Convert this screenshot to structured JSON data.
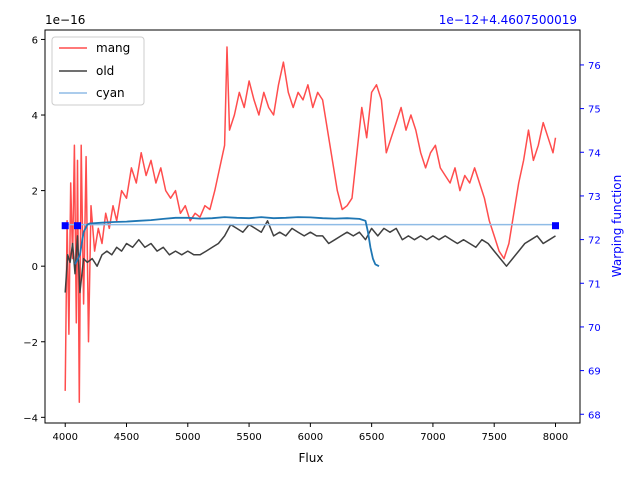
{
  "chart_data": {
    "type": "line",
    "title": "",
    "xlabel": "Flux",
    "ylabel_left": "",
    "ylabel_right": "Warping function",
    "xlim": [
      3835,
      8200
    ],
    "ylim_left": [
      -4.15,
      6.25
    ],
    "ylim_left_unit": "1e-16",
    "ylim_right": [
      67.8,
      76.8
    ],
    "x_ticks": [
      4000,
      4500,
      5000,
      5500,
      6000,
      6500,
      7000,
      7500,
      8000
    ],
    "y_ticks_left": [
      -4,
      -2,
      0,
      2,
      4,
      6
    ],
    "y_ticks_right": [
      68,
      69,
      70,
      71,
      72,
      73,
      74,
      75,
      76
    ],
    "offset_left": "1e−16",
    "offset_right": "1e−12+4.4607500019",
    "grid": false,
    "legend_position": "top-left",
    "colors": {
      "mang": "#ff4d4d",
      "old": "#404040",
      "cyan": "#8fbce6",
      "warp": "#1f77b4",
      "right_axis": "#0000ff",
      "markers": "#0000ff"
    },
    "series": [
      {
        "name": "mang",
        "axis": "left",
        "color": "#ff4d4d",
        "x": [
          4000,
          4015,
          4030,
          4045,
          4060,
          4075,
          4090,
          4100,
          4115,
          4130,
          4150,
          4170,
          4190,
          4210,
          4240,
          4270,
          4300,
          4330,
          4360,
          4390,
          4420,
          4460,
          4500,
          4540,
          4580,
          4620,
          4660,
          4700,
          4740,
          4780,
          4820,
          4860,
          4900,
          4940,
          4980,
          5020,
          5060,
          5100,
          5140,
          5180,
          5220,
          5260,
          5300,
          5320,
          5340,
          5380,
          5420,
          5460,
          5500,
          5540,
          5580,
          5620,
          5660,
          5700,
          5740,
          5780,
          5820,
          5860,
          5900,
          5940,
          5980,
          6020,
          6060,
          6100,
          6140,
          6180,
          6220,
          6260,
          6300,
          6340,
          6380,
          6420,
          6460,
          6500,
          6540,
          6580,
          6620,
          6660,
          6700,
          6740,
          6780,
          6820,
          6860,
          6900,
          6940,
          6980,
          7020,
          7060,
          7100,
          7140,
          7180,
          7220,
          7260,
          7300,
          7340,
          7380,
          7420,
          7460,
          7500,
          7540,
          7580,
          7620,
          7660,
          7700,
          7740,
          7780,
          7820,
          7860,
          7900,
          7940,
          7980,
          8000
        ],
        "values": [
          -3.3,
          1.2,
          -1.8,
          2.2,
          0.2,
          3.2,
          -1.5,
          2.8,
          -3.6,
          3.2,
          -1.0,
          2.9,
          -2.0,
          1.6,
          0.4,
          1.0,
          0.6,
          1.4,
          1.0,
          1.6,
          1.2,
          2.0,
          1.8,
          2.6,
          2.2,
          3.0,
          2.4,
          2.8,
          2.2,
          2.6,
          2.0,
          1.8,
          2.0,
          1.4,
          1.6,
          1.2,
          1.4,
          1.3,
          1.6,
          1.5,
          2.0,
          2.6,
          3.2,
          5.8,
          3.6,
          4.0,
          4.6,
          4.2,
          4.9,
          4.4,
          4.0,
          4.6,
          4.2,
          4.0,
          4.8,
          5.4,
          4.6,
          4.2,
          4.6,
          4.4,
          4.8,
          4.2,
          4.6,
          4.4,
          3.6,
          2.8,
          2.0,
          1.5,
          1.6,
          1.8,
          3.0,
          4.2,
          3.4,
          4.6,
          4.8,
          4.4,
          3.0,
          3.4,
          3.8,
          4.2,
          3.6,
          4.0,
          3.6,
          3.0,
          2.6,
          3.0,
          3.2,
          2.6,
          2.4,
          2.2,
          2.6,
          2.0,
          2.4,
          2.2,
          2.6,
          2.2,
          1.8,
          1.2,
          0.8,
          0.4,
          0.2,
          0.6,
          1.4,
          2.2,
          2.8,
          3.6,
          2.8,
          3.2,
          3.8,
          3.4,
          3.0,
          3.4
        ]
      },
      {
        "name": "old",
        "axis": "left",
        "color": "#404040",
        "x": [
          4000,
          4020,
          4040,
          4060,
          4080,
          4100,
          4120,
          4150,
          4180,
          4220,
          4260,
          4300,
          4340,
          4380,
          4420,
          4460,
          4500,
          4550,
          4600,
          4650,
          4700,
          4750,
          4800,
          4850,
          4900,
          4950,
          5000,
          5050,
          5100,
          5150,
          5200,
          5250,
          5300,
          5350,
          5400,
          5450,
          5500,
          5550,
          5600,
          5650,
          5700,
          5750,
          5800,
          5850,
          5900,
          5950,
          6000,
          6050,
          6100,
          6150,
          6200,
          6250,
          6300,
          6350,
          6400,
          6450,
          6500,
          6550,
          6600,
          6650,
          6700,
          6750,
          6800,
          6850,
          6900,
          6950,
          7000,
          7050,
          7100,
          7150,
          7200,
          7250,
          7300,
          7350,
          7400,
          7450,
          7500,
          7550,
          7600,
          7650,
          7700,
          7750,
          7800,
          7850,
          7900,
          7950,
          8000
        ],
        "values": [
          -0.7,
          0.3,
          0.1,
          0.6,
          -0.2,
          0.8,
          -0.7,
          0.2,
          0.1,
          0.2,
          0.0,
          0.3,
          0.4,
          0.3,
          0.5,
          0.4,
          0.6,
          0.5,
          0.7,
          0.5,
          0.6,
          0.4,
          0.5,
          0.3,
          0.4,
          0.3,
          0.4,
          0.3,
          0.3,
          0.4,
          0.5,
          0.6,
          0.8,
          1.1,
          1.0,
          0.9,
          1.1,
          1.0,
          0.9,
          1.2,
          0.8,
          0.9,
          0.8,
          1.0,
          0.9,
          0.8,
          0.9,
          0.8,
          0.8,
          0.6,
          0.7,
          0.8,
          0.9,
          0.8,
          0.9,
          0.7,
          1.0,
          0.8,
          1.0,
          0.9,
          1.0,
          0.7,
          0.8,
          0.7,
          0.8,
          0.7,
          0.8,
          0.7,
          0.8,
          0.7,
          0.6,
          0.7,
          0.6,
          0.5,
          0.7,
          0.6,
          0.4,
          0.2,
          0.0,
          0.2,
          0.4,
          0.6,
          0.7,
          0.8,
          0.6,
          0.7,
          0.8
        ]
      },
      {
        "name": "cyan",
        "axis": "left",
        "color": "#8fbce6",
        "x": [
          4000,
          8000
        ],
        "values": [
          1.1,
          1.1
        ]
      },
      {
        "name": "",
        "axis": "left",
        "color": "#1f77b4",
        "x": [
          4080,
          4120,
          4150,
          4180,
          4200,
          4300,
          4400,
          4500,
          4600,
          4700,
          4800,
          4900,
          5000,
          5100,
          5200,
          5300,
          5400,
          5500,
          5600,
          5700,
          5800,
          5900,
          6000,
          6100,
          6200,
          6300,
          6400,
          6450,
          6470,
          6490,
          6510,
          6530,
          6560
        ],
        "values": [
          0.05,
          0.3,
          0.9,
          1.1,
          1.13,
          1.15,
          1.17,
          1.18,
          1.2,
          1.22,
          1.25,
          1.28,
          1.28,
          1.26,
          1.27,
          1.3,
          1.28,
          1.27,
          1.3,
          1.27,
          1.28,
          1.3,
          1.29,
          1.27,
          1.26,
          1.27,
          1.25,
          1.2,
          0.9,
          0.5,
          0.2,
          0.05,
          0.0
        ]
      }
    ],
    "markers": {
      "axis": "left",
      "color": "#0000ff",
      "x": [
        4000,
        4100,
        8000
      ],
      "values": [
        1.07,
        1.07,
        1.07
      ]
    }
  }
}
